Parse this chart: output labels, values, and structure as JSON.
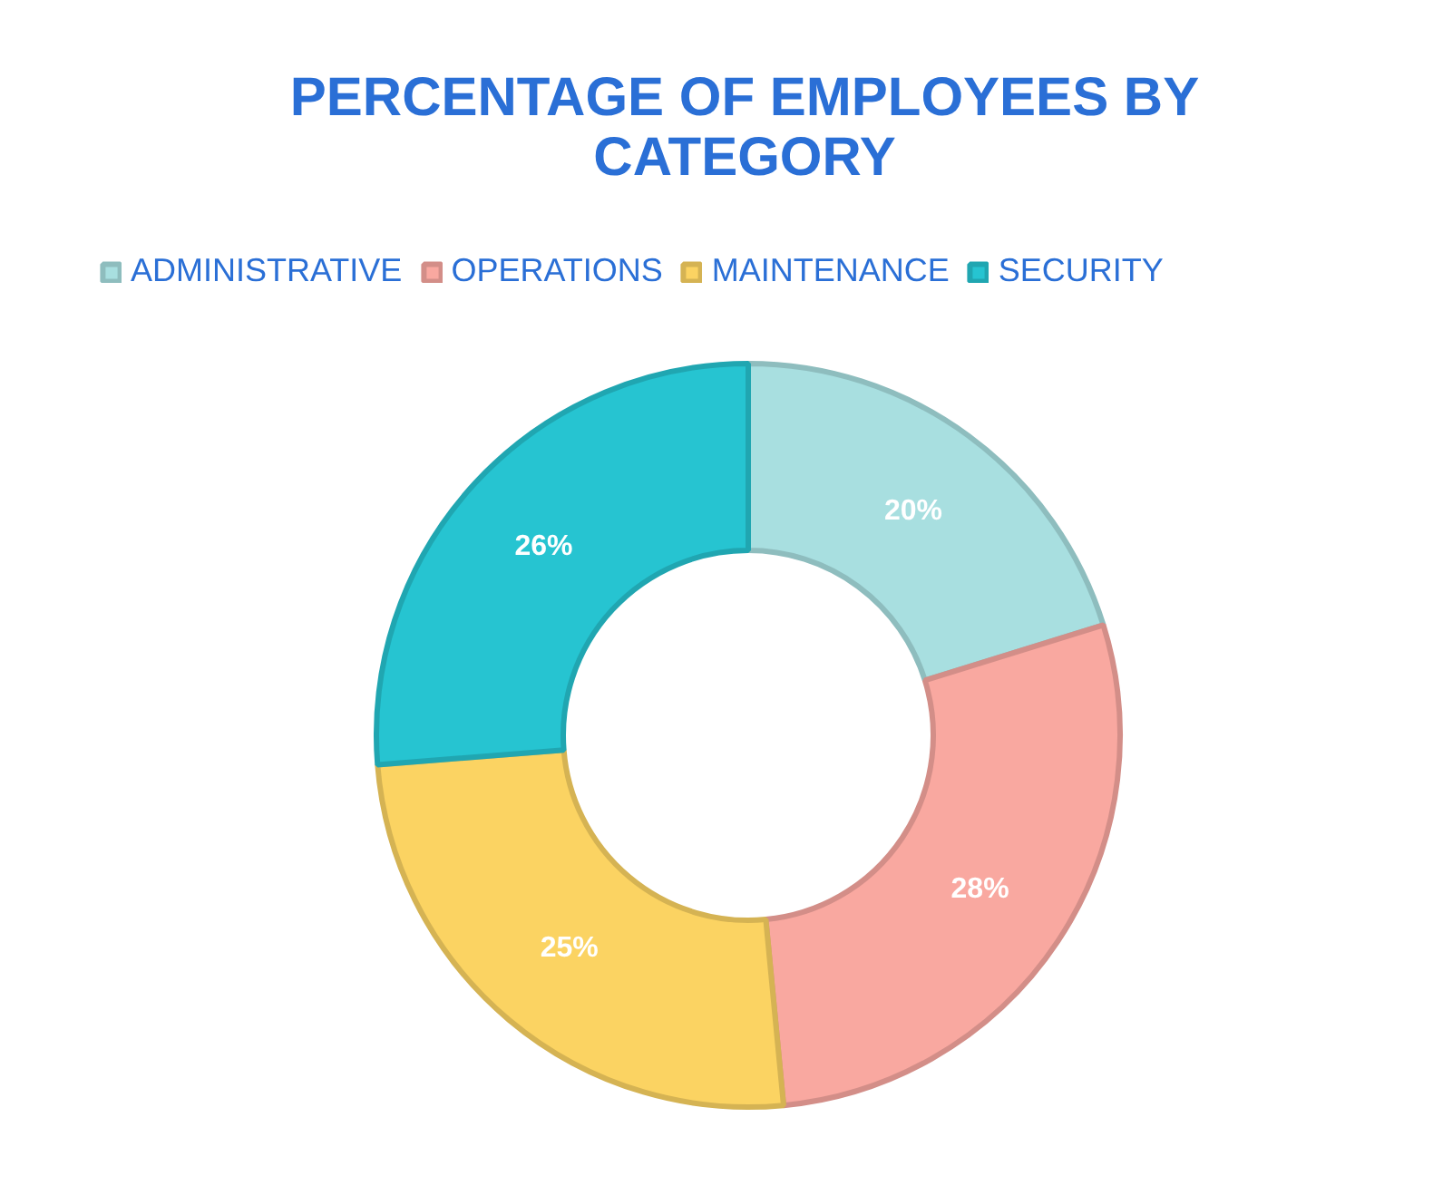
{
  "chart_data": {
    "type": "donut",
    "title": "PERCENTAGE OF EMPLOYEES BY\nCATEGORY",
    "categories": [
      "ADMINISTRATIVE",
      "OPERATIONS",
      "MAINTENANCE",
      "SECURITY"
    ],
    "values": [
      20,
      28,
      25,
      26
    ],
    "value_labels": [
      "20%",
      "28%",
      "25%",
      "26%"
    ],
    "colors": [
      "#a8dfe0",
      "#f9a8a0",
      "#fbd362",
      "#26c4d1"
    ],
    "legend": "top"
  }
}
